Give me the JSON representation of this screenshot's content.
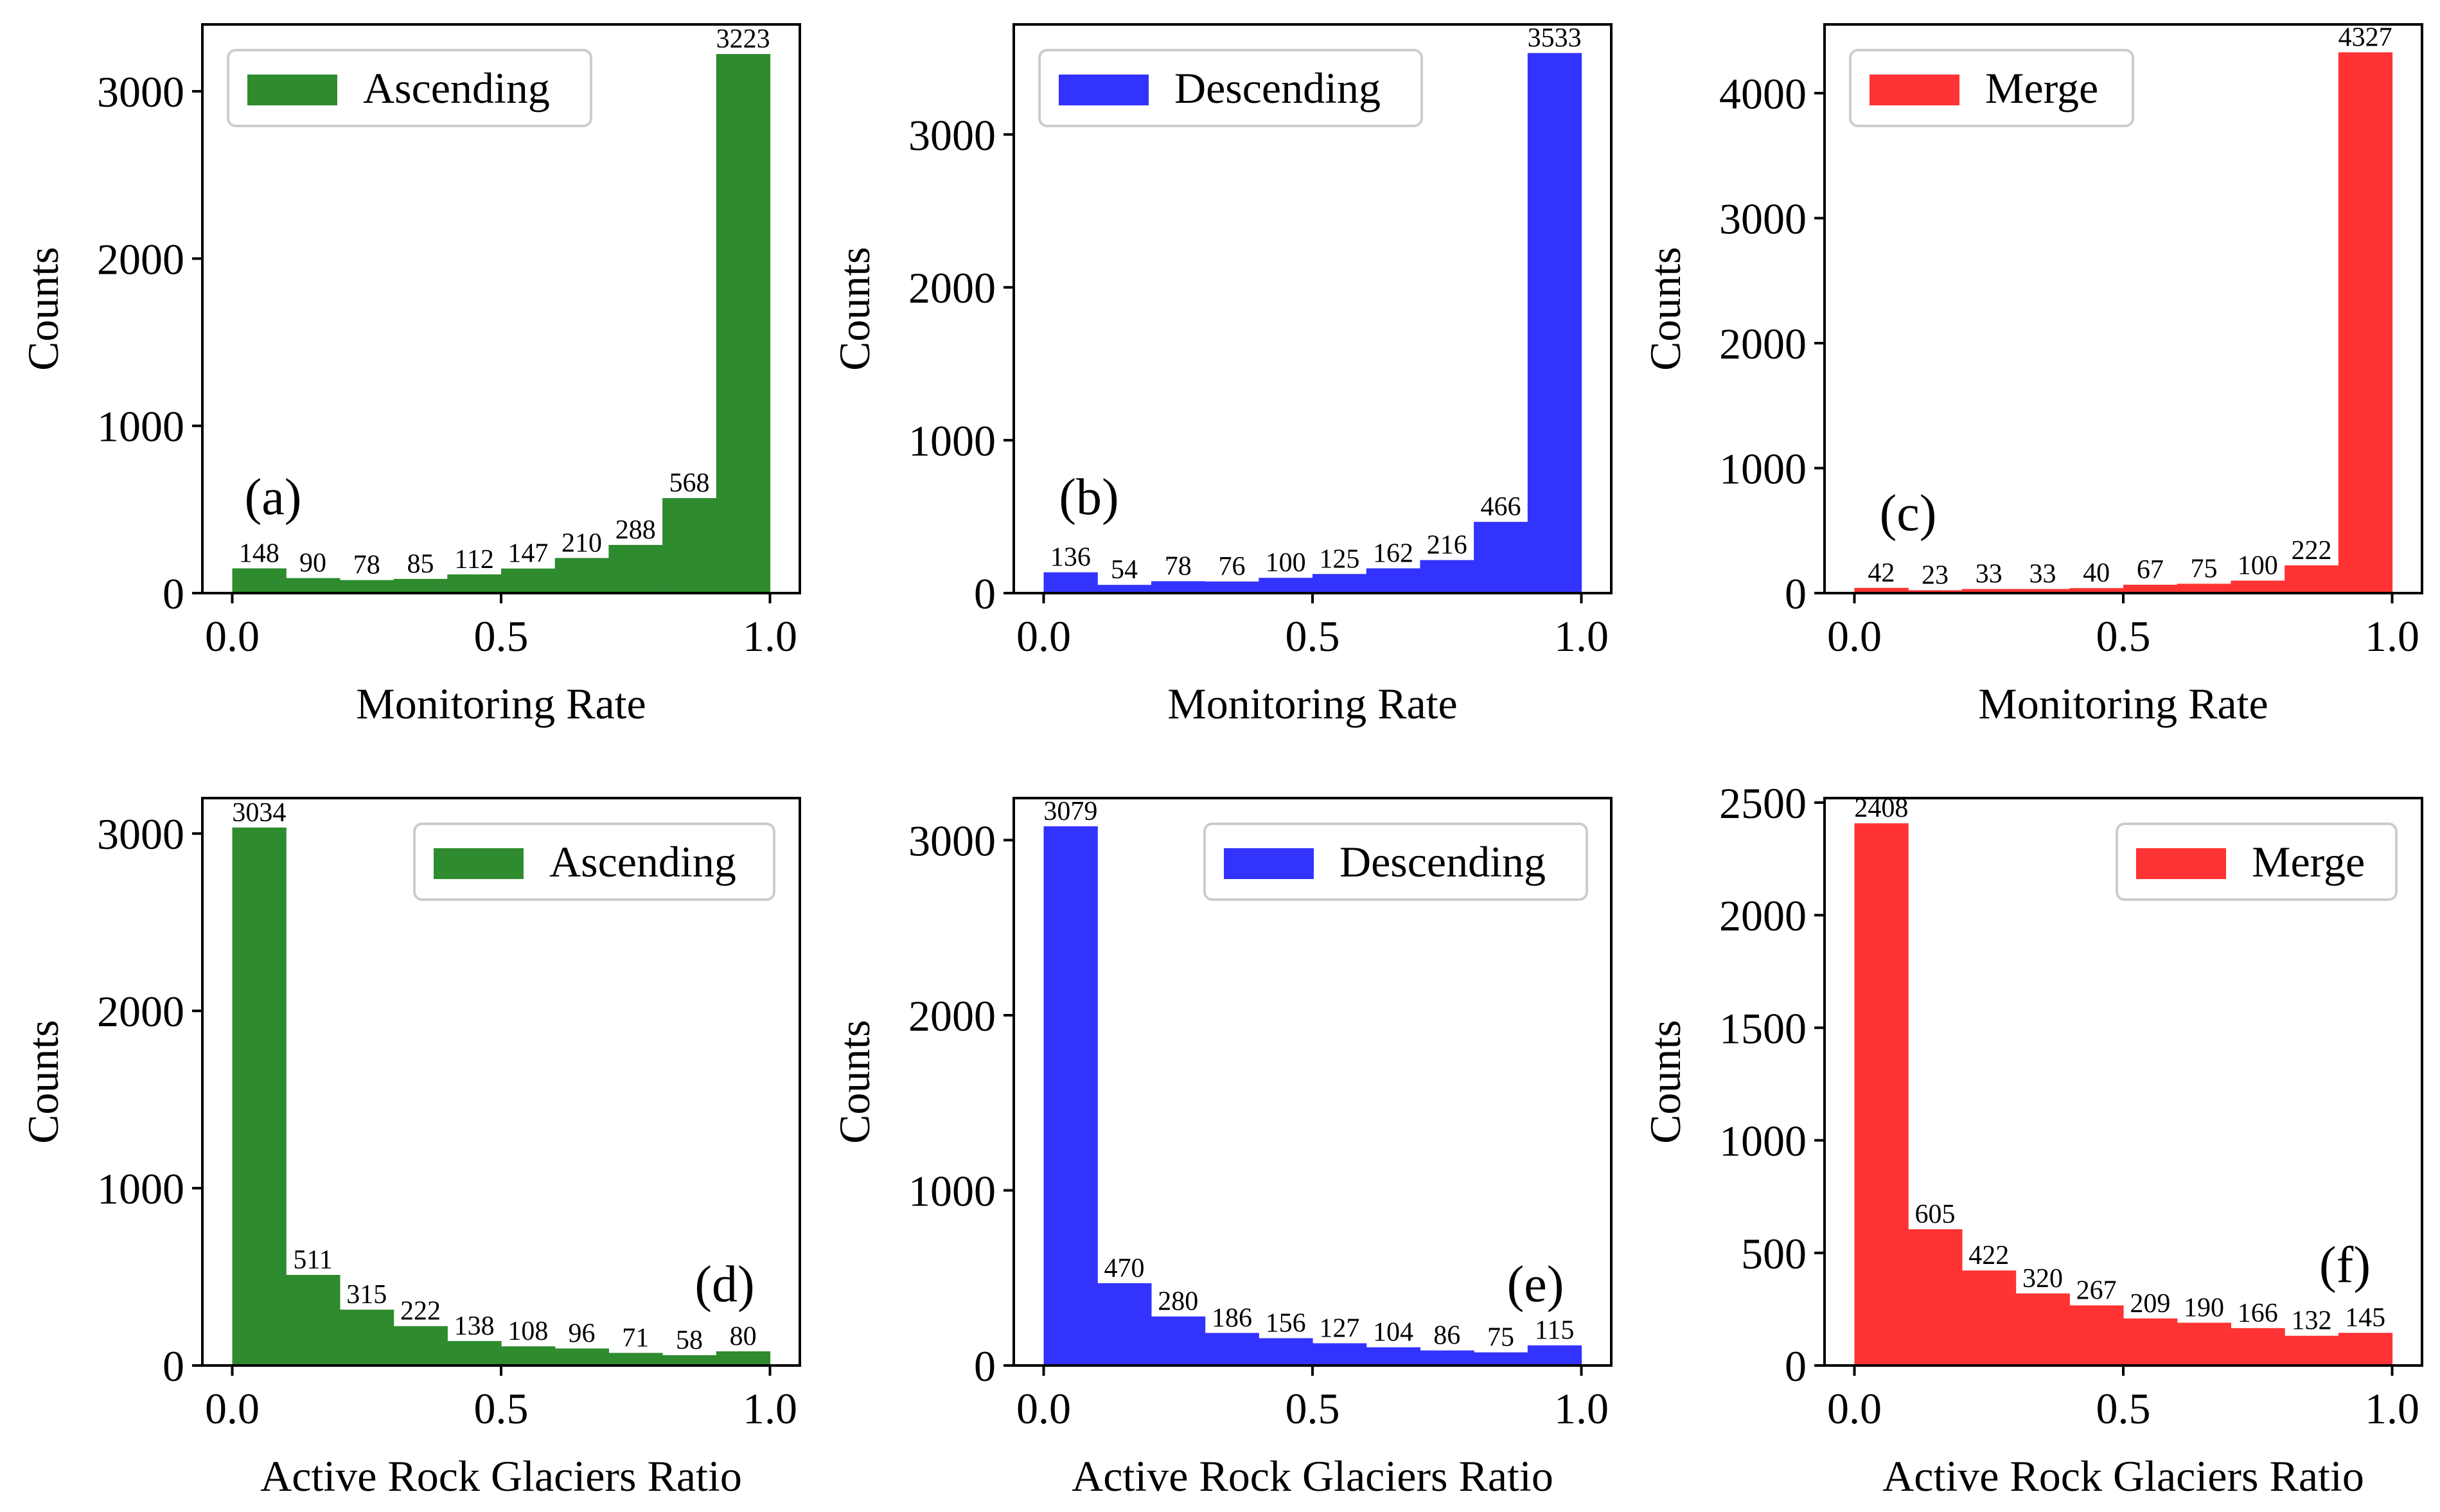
{
  "chart_data": [
    {
      "panel": "(a)",
      "type": "bar",
      "legend": "Ascending",
      "color": "#2e8b2e",
      "xlabel": "Monitoring Rate",
      "ylabel": "Counts",
      "xlim": [
        0.0,
        1.0
      ],
      "ylim": [
        0,
        3400
      ],
      "xticks": [
        "0.0",
        "0.5",
        "1.0"
      ],
      "yticks": [
        0,
        1000,
        2000,
        3000
      ],
      "values": [
        148,
        90,
        78,
        85,
        112,
        147,
        210,
        288,
        568,
        3223
      ],
      "value_labels": [
        "148",
        "90",
        "78",
        "85",
        "112",
        "147",
        "210",
        "288",
        "568",
        "3223"
      ],
      "legend_position": "top-left"
    },
    {
      "panel": "(b)",
      "type": "bar",
      "legend": "Descending",
      "color": "#3333ff",
      "xlabel": "Monitoring Rate",
      "ylabel": "Counts",
      "xlim": [
        0.0,
        1.0
      ],
      "ylim": [
        0,
        3720
      ],
      "xticks": [
        "0.0",
        "0.5",
        "1.0"
      ],
      "yticks": [
        0,
        1000,
        2000,
        3000
      ],
      "values": [
        136,
        54,
        78,
        76,
        100,
        125,
        162,
        216,
        466,
        3533
      ],
      "value_labels": [
        "136",
        "54",
        "78",
        "76",
        "100",
        "125",
        "162",
        "216",
        "466",
        "3533"
      ],
      "legend_position": "top-left"
    },
    {
      "panel": "(c)",
      "type": "bar",
      "legend": "Merge",
      "color": "#ff3333",
      "xlabel": "Monitoring Rate",
      "ylabel": "Counts",
      "xlim": [
        0.0,
        1.0
      ],
      "ylim": [
        0,
        4550
      ],
      "xticks": [
        "0.0",
        "0.5",
        "1.0"
      ],
      "yticks": [
        0,
        1000,
        2000,
        3000,
        4000
      ],
      "values": [
        42,
        23,
        33,
        33,
        40,
        67,
        75,
        100,
        222,
        4327
      ],
      "value_labels": [
        "42",
        "23",
        "33",
        "33",
        "40",
        "67",
        "75",
        "100",
        "222",
        "4327"
      ],
      "legend_position": "top-left"
    },
    {
      "panel": "(d)",
      "type": "bar",
      "legend": "Ascending",
      "color": "#2e8b2e",
      "xlabel": "Active Rock Glaciers Ratio",
      "ylabel": "Counts",
      "xlim": [
        0.0,
        1.0
      ],
      "ylim": [
        0,
        3200
      ],
      "xticks": [
        "0.0",
        "0.5",
        "1.0"
      ],
      "yticks": [
        0,
        1000,
        2000,
        3000
      ],
      "values": [
        3034,
        511,
        315,
        222,
        138,
        108,
        96,
        71,
        58,
        80
      ],
      "value_labels": [
        "3034",
        "511",
        "315",
        "222",
        "138",
        "108",
        "96",
        "71",
        "58",
        "80"
      ],
      "legend_position": "top-right"
    },
    {
      "panel": "(e)",
      "type": "bar",
      "legend": "Descending",
      "color": "#3333ff",
      "xlabel": "Active Rock Glaciers Ratio",
      "ylabel": "Counts",
      "xlim": [
        0.0,
        1.0
      ],
      "ylim": [
        0,
        3240
      ],
      "xticks": [
        "0.0",
        "0.5",
        "1.0"
      ],
      "yticks": [
        0,
        1000,
        2000,
        3000
      ],
      "values": [
        3079,
        470,
        280,
        186,
        156,
        127,
        104,
        86,
        75,
        115
      ],
      "value_labels": [
        "3079",
        "470",
        "280",
        "186",
        "156",
        "127",
        "104",
        "86",
        "75",
        "115"
      ],
      "legend_position": "top-right"
    },
    {
      "panel": "(f)",
      "type": "bar",
      "legend": "Merge",
      "color": "#ff3333",
      "xlabel": "Active Rock Glaciers Ratio",
      "ylabel": "Counts",
      "xlim": [
        0.0,
        1.0
      ],
      "ylim": [
        0,
        2520
      ],
      "xticks": [
        "0.0",
        "0.5",
        "1.0"
      ],
      "yticks": [
        0,
        500,
        1000,
        1500,
        2000,
        2500
      ],
      "values": [
        2408,
        605,
        422,
        320,
        267,
        209,
        190,
        166,
        132,
        145
      ],
      "value_labels": [
        "2408",
        "605",
        "422",
        "320",
        "267",
        "209",
        "190",
        "166",
        "132",
        "145"
      ],
      "legend_position": "top-right"
    }
  ]
}
